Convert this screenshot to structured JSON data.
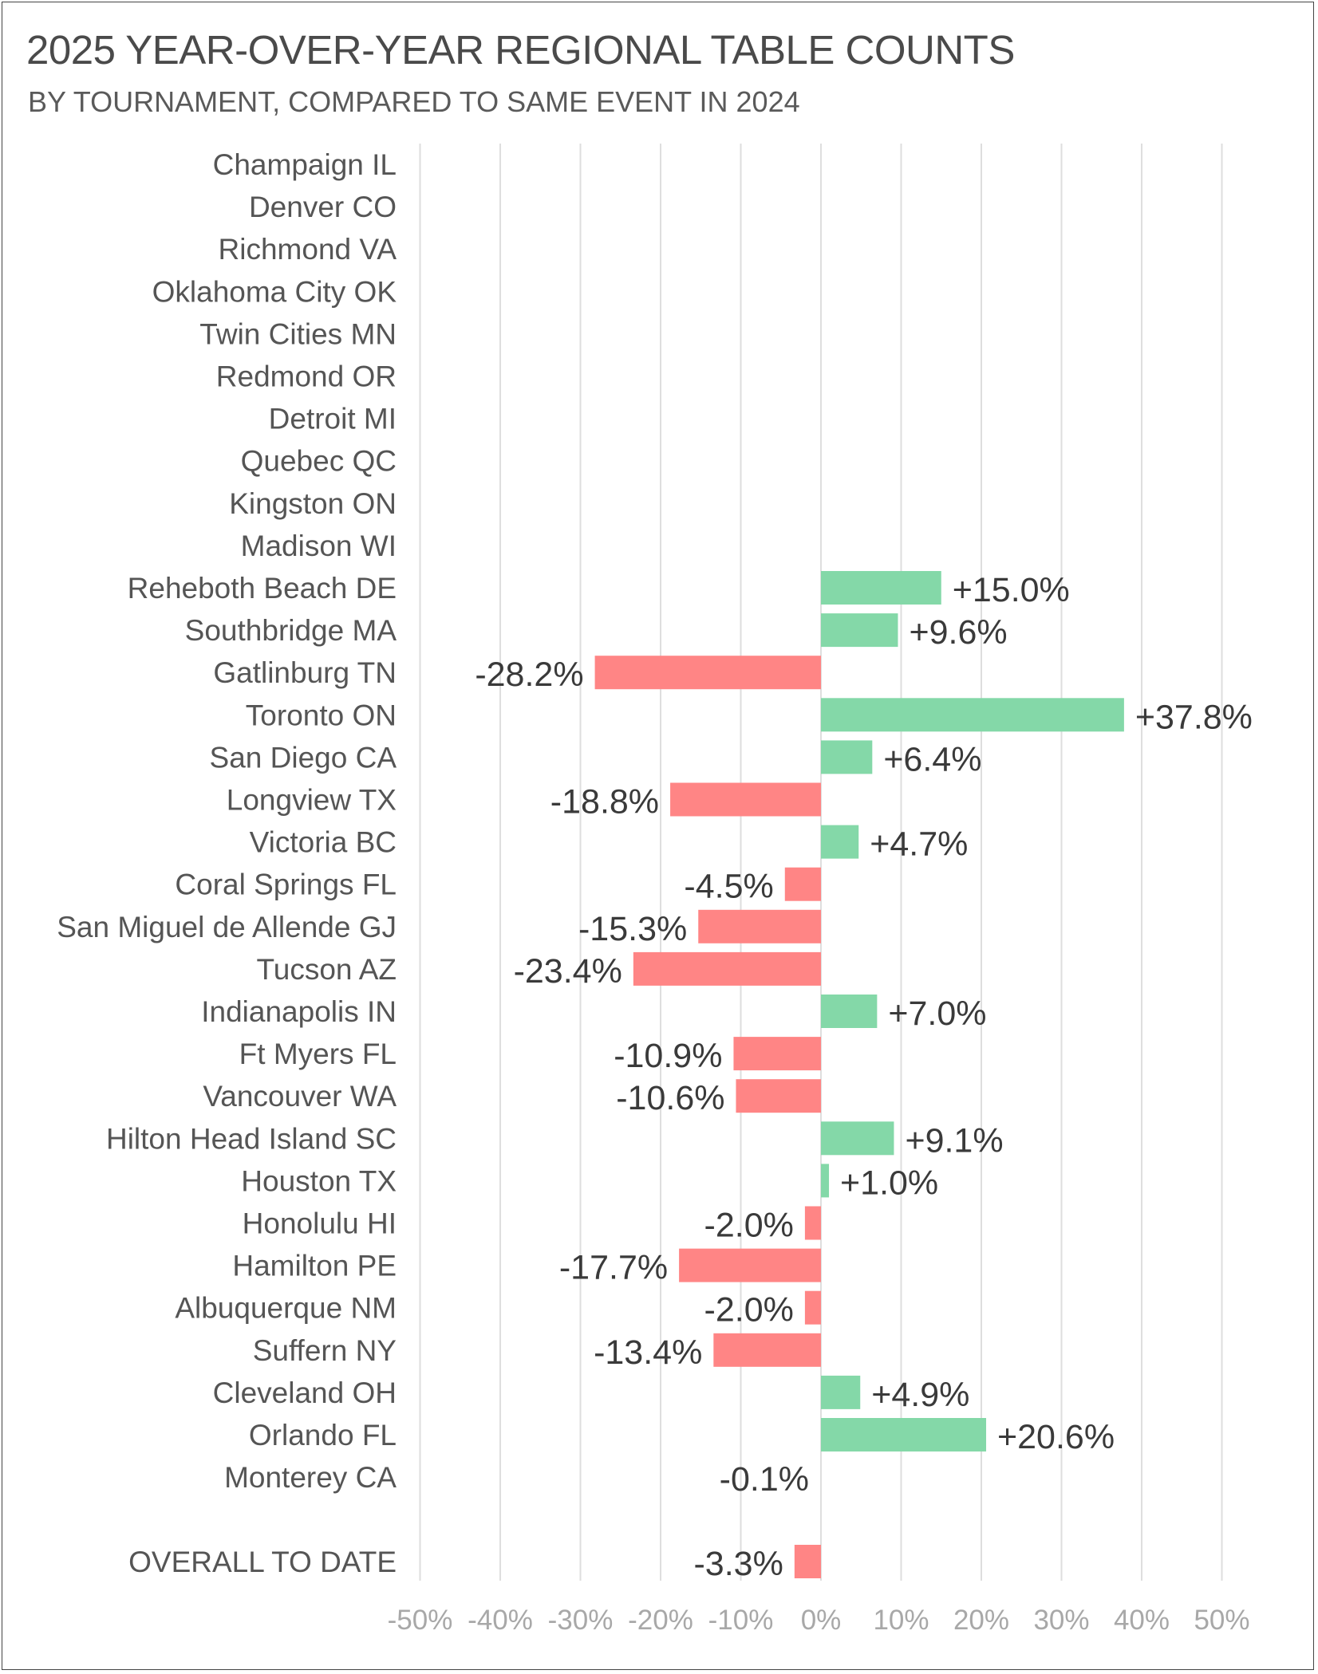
{
  "title": "2025 YEAR-OVER-YEAR REGIONAL TABLE COUNTS",
  "subtitle": "BY TOURNAMENT, COMPARED TO SAME EVENT IN 2024",
  "colors": {
    "positive": "#84d8a8",
    "negative": "#ff8585",
    "grid": "#dedede"
  },
  "chart_data": {
    "type": "bar",
    "orientation": "horizontal",
    "title": "2025 YEAR-OVER-YEAR REGIONAL TABLE COUNTS",
    "subtitle": "BY TOURNAMENT, COMPARED TO SAME EVENT IN 2024",
    "xlim": [
      -50,
      50
    ],
    "x_unit": "%",
    "grid": true,
    "ticks": [
      -50,
      -40,
      -30,
      -20,
      -10,
      0,
      10,
      20,
      30,
      40,
      50
    ],
    "tick_labels": [
      "-50%",
      "-40%",
      "-30%",
      "-20%",
      "-10%",
      "0%",
      "10%",
      "20%",
      "30%",
      "40%",
      "50%"
    ],
    "categories": [
      "Champaign IL",
      "Denver CO",
      "Richmond VA",
      "Oklahoma City OK",
      "Twin Cities MN",
      "Redmond OR",
      "Detroit MI",
      "Quebec QC",
      "Kingston ON",
      "Madison WI",
      "Reheboth Beach DE",
      "Southbridge MA",
      "Gatlinburg TN",
      "Toronto ON",
      "San Diego CA",
      "Longview TX",
      "Victoria BC",
      "Coral Springs FL",
      "San Miguel de Allende GJ",
      "Tucson AZ",
      "Indianapolis IN",
      "Ft Myers FL",
      "Vancouver WA",
      "Hilton Head Island SC",
      "Houston TX",
      "Honolulu HI",
      "Hamilton PE",
      "Albuquerque NM",
      "Suffern NY",
      "Cleveland OH",
      "Orlando FL",
      "Monterey CA"
    ],
    "values": [
      null,
      null,
      null,
      null,
      null,
      null,
      null,
      null,
      null,
      null,
      15.0,
      9.6,
      -28.2,
      37.8,
      6.4,
      -18.8,
      4.7,
      -4.5,
      -15.3,
      -23.4,
      7.0,
      -10.9,
      -10.6,
      9.1,
      1.0,
      -2.0,
      -17.7,
      -2.0,
      -13.4,
      4.9,
      20.6,
      -0.1
    ],
    "value_labels": [
      "",
      "",
      "",
      "",
      "",
      "",
      "",
      "",
      "",
      "",
      "+15.0%",
      "+9.6%",
      "-28.2%",
      "+37.8%",
      "+6.4%",
      "-18.8%",
      "+4.7%",
      "-4.5%",
      "-15.3%",
      "-23.4%",
      "+7.0%",
      "-10.9%",
      "-10.6%",
      "+9.1%",
      "+1.0%",
      "-2.0%",
      "-17.7%",
      "-2.0%",
      "-13.4%",
      "+4.9%",
      "+20.6%",
      "-0.1%"
    ],
    "overall": {
      "category": "OVERALL TO DATE",
      "value": -3.3,
      "label": "-3.3%"
    }
  }
}
